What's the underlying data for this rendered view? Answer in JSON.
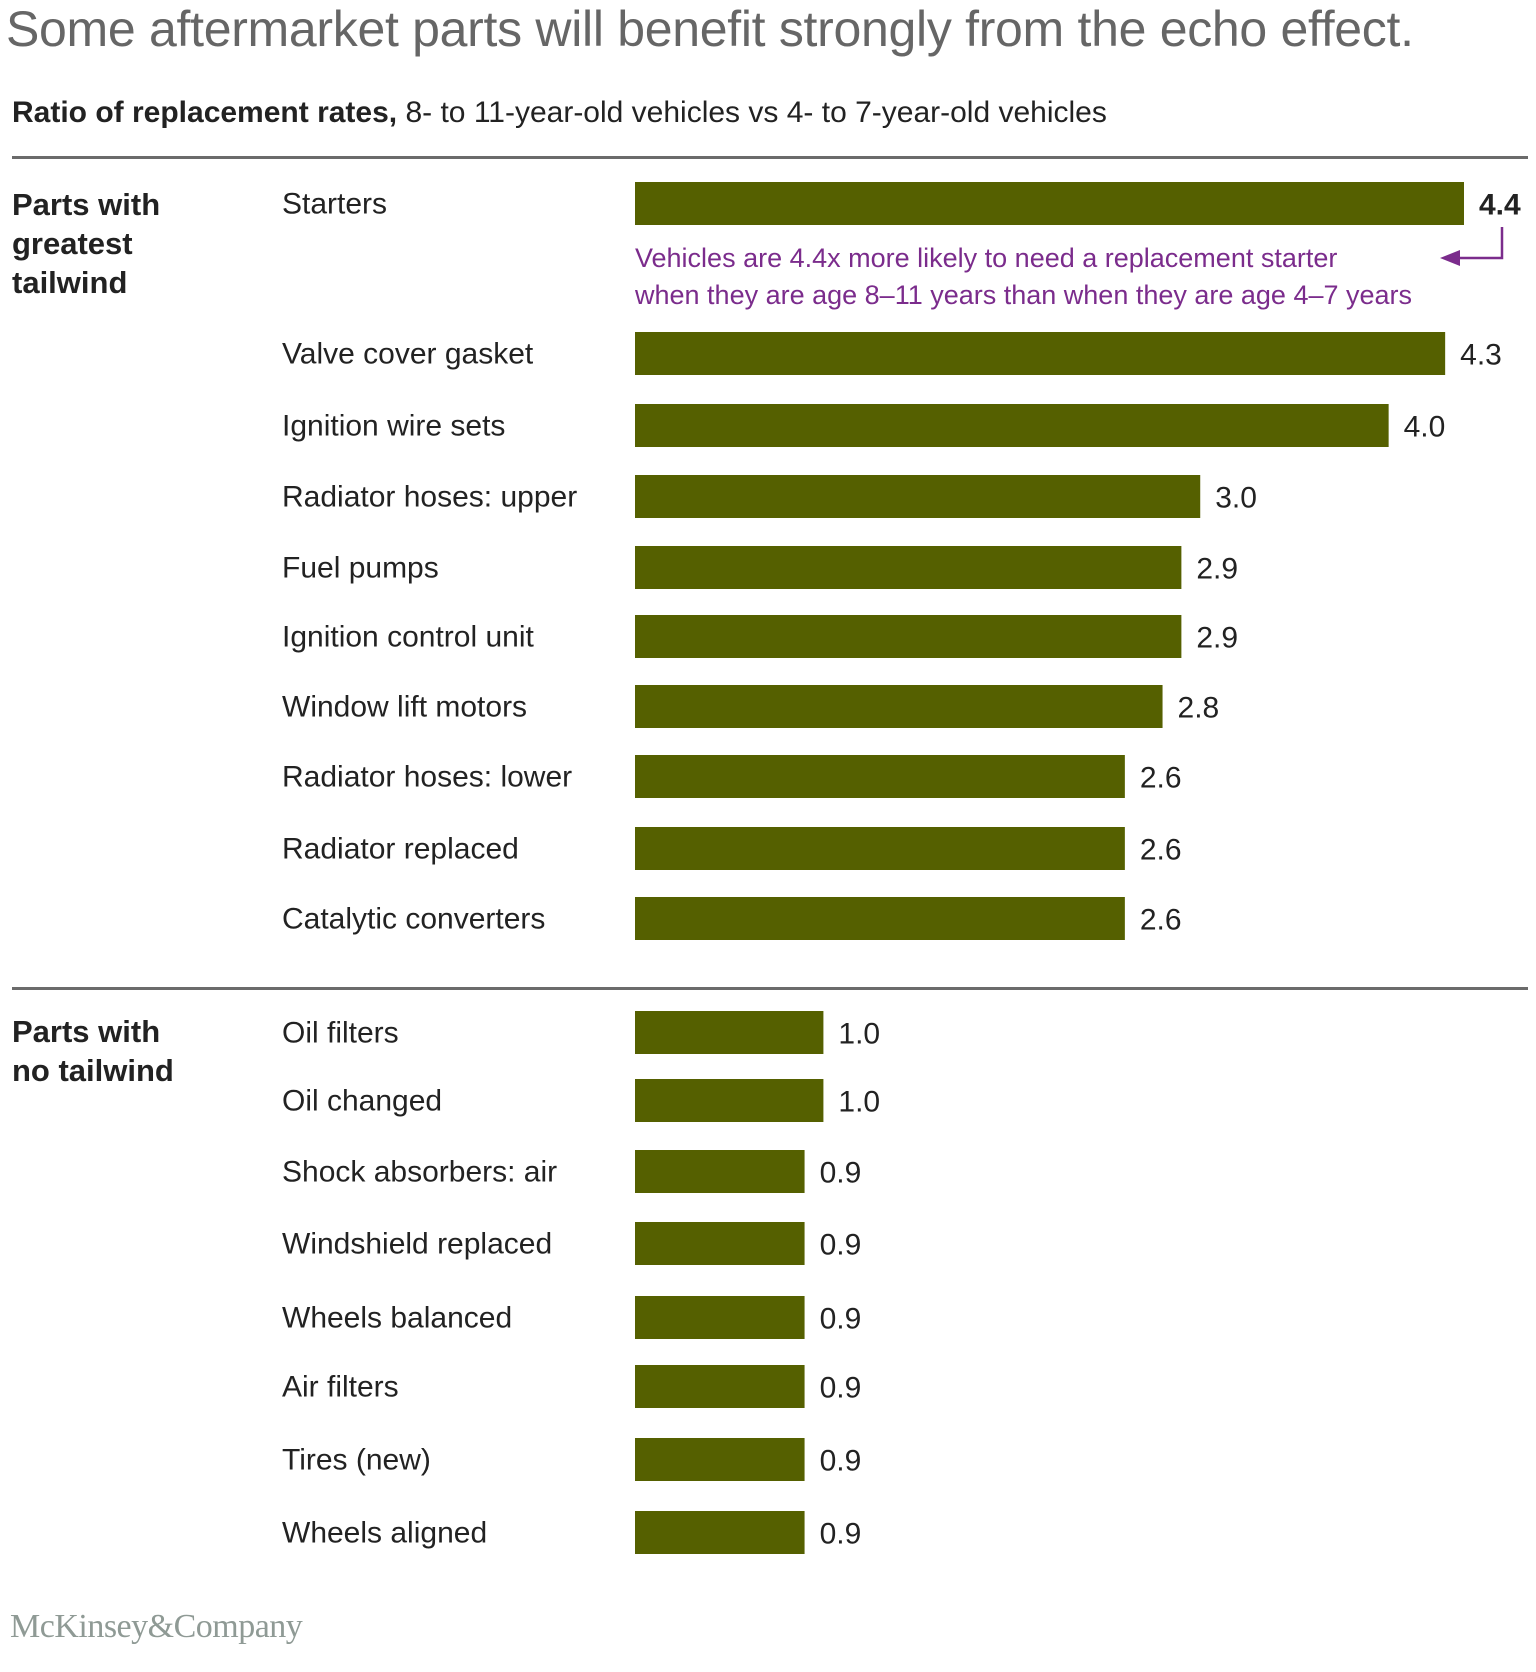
{
  "title": "Some aftermarket parts will benefit strongly from the echo effect.",
  "subtitle": {
    "bold": "Ratio of replacement rates,",
    "rest": " 8- to 11-year-old vehicles vs 4- to 7-year-old vehicles"
  },
  "groups": [
    {
      "label": "Parts with\ngreatest\ntailwind"
    },
    {
      "label": "Parts with\nno tailwind"
    }
  ],
  "annotation": {
    "line1": "Vehicles are 4.4x more likely to need a replacement starter",
    "line2": "when they are age 8–11 years than when they are age 4–7 years"
  },
  "logo": "McKinsey&Company",
  "colors": {
    "bar": "#556000",
    "annotation": "#7b2c8c",
    "title": "#666666",
    "rule": "#6b6b6b"
  },
  "chart_data": {
    "type": "bar",
    "orientation": "horizontal",
    "title": "Ratio of replacement rates, 8- to 11-year-old vehicles vs 4- to 7-year-old vehicles",
    "xlabel": "",
    "ylabel": "",
    "xlim": [
      0,
      4.4
    ],
    "grid": false,
    "legend": "none",
    "series": [
      {
        "name": "Parts with greatest tailwind",
        "categories": [
          "Starters",
          "Valve cover gasket",
          "Ignition wire sets",
          "Radiator hoses: upper",
          "Fuel pumps",
          "Ignition control unit",
          "Window lift motors",
          "Radiator hoses: lower",
          "Radiator replaced",
          "Catalytic converters"
        ],
        "values": [
          4.4,
          4.3,
          4.0,
          3.0,
          2.9,
          2.9,
          2.8,
          2.6,
          2.6,
          2.6
        ],
        "labels": [
          "4.4",
          "4.3",
          "4.0",
          "3.0",
          "2.9",
          "2.9",
          "2.8",
          "2.6",
          "2.6",
          "2.6"
        ]
      },
      {
        "name": "Parts with no tailwind",
        "categories": [
          "Oil filters",
          "Oil changed",
          "Shock absorbers: air",
          "Windshield replaced",
          "Wheels balanced",
          "Air filters",
          "Tires (new)",
          "Wheels aligned"
        ],
        "values": [
          1.0,
          1.0,
          0.9,
          0.9,
          0.9,
          0.9,
          0.9,
          0.9
        ],
        "labels": [
          "1.0",
          "1.0",
          "0.9",
          "0.9",
          "0.9",
          "0.9",
          "0.9",
          "0.9"
        ]
      }
    ]
  }
}
